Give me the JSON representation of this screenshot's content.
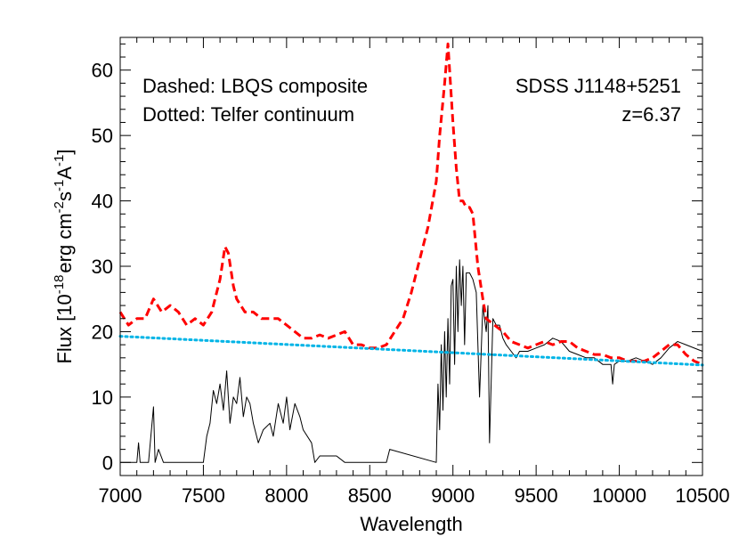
{
  "chart_data": {
    "type": "line",
    "xlabel": "Wavelength",
    "ylabel": {
      "prefix": "Flux [10",
      "exp1": "-18",
      "mid": "erg cm",
      "exp2": "-2",
      "s": "s",
      "exp3": "-1",
      "A": "A",
      "exp4": "-1",
      "suffix": "]"
    },
    "xlim": [
      7000,
      10500
    ],
    "ylim": [
      -2,
      65
    ],
    "xticks": [
      7000,
      7500,
      8000,
      8500,
      9000,
      9500,
      10000,
      10500
    ],
    "yticks": [
      0,
      10,
      20,
      30,
      40,
      50,
      60
    ],
    "annotations": {
      "dashed_label": "Dashed: LBQS composite",
      "dotted_label": "Dotted: Telfer continuum",
      "object": "SDSS J1148+5251",
      "redshift": "z=6.37"
    },
    "colors": {
      "observed": "#000000",
      "lbqs": "#ff0000",
      "telfer": "#00b4e6"
    },
    "series": [
      {
        "style": "solid",
        "x": [
          7000,
          7100,
          7110,
          7120,
          7150,
          7170,
          7200,
          7210,
          7230,
          7260,
          7300,
          7360,
          7400,
          7500,
          7520,
          7540,
          7560,
          7580,
          7600,
          7620,
          7640,
          7660,
          7680,
          7700,
          7720,
          7740,
          7760,
          7780,
          7800,
          7830,
          7860,
          7900,
          7920,
          7950,
          7980,
          8000,
          8020,
          8050,
          8080,
          8100,
          8150,
          8170,
          8200,
          8300,
          8350,
          8380,
          8600,
          8620,
          8900,
          8910,
          8920,
          8930,
          8940,
          8950,
          8960,
          8970,
          8980,
          8990,
          9000,
          9010,
          9020,
          9030,
          9040,
          9050,
          9060,
          9070,
          9080,
          9100,
          9120,
          9140,
          9160,
          9180,
          9200,
          9210,
          9220,
          9240,
          9260,
          9280,
          9300,
          9320,
          9350,
          9380,
          9400,
          9450,
          9500,
          9550,
          9600,
          9650,
          9700,
          9750,
          9800,
          9850,
          9900,
          9950,
          9960,
          9970,
          10000,
          10050,
          10100,
          10200,
          10250,
          10300,
          10350,
          10400,
          10500
        ],
        "y": [
          0,
          0,
          3,
          0,
          0,
          0,
          8.5,
          0,
          2,
          0,
          0,
          0,
          0,
          0,
          4,
          6,
          11,
          9,
          12,
          8,
          14,
          6,
          10,
          9,
          13,
          7,
          10,
          9,
          6,
          3,
          5,
          6,
          4,
          9,
          6,
          10,
          5,
          9,
          7,
          5,
          3,
          0,
          1,
          1,
          0,
          0,
          0,
          2,
          0,
          12,
          5,
          18,
          8,
          20,
          10,
          22,
          12,
          27,
          28,
          15,
          30,
          20,
          31,
          24,
          30,
          18,
          29,
          29,
          28,
          26,
          10,
          24,
          20,
          24,
          3,
          22,
          21,
          21,
          19,
          18,
          17,
          16,
          17,
          17,
          17.5,
          18,
          19,
          18.5,
          17,
          16.5,
          16,
          16,
          15,
          15,
          12,
          15,
          15.5,
          15.5,
          16,
          15,
          16,
          17.5,
          18.5,
          18,
          17
        ]
      },
      {
        "style": "dashed",
        "x": [
          7000,
          7050,
          7100,
          7150,
          7200,
          7250,
          7300,
          7350,
          7400,
          7450,
          7500,
          7550,
          7600,
          7630,
          7650,
          7680,
          7700,
          7750,
          7800,
          7850,
          7900,
          7950,
          8000,
          8050,
          8100,
          8150,
          8200,
          8250,
          8300,
          8350,
          8400,
          8450,
          8500,
          8550,
          8600,
          8650,
          8700,
          8750,
          8800,
          8850,
          8900,
          8920,
          8950,
          8970,
          9000,
          9020,
          9040,
          9060,
          9080,
          9100,
          9120,
          9150,
          9180,
          9200,
          9250,
          9300,
          9350,
          9400,
          9450,
          9500,
          9550,
          9600,
          9650,
          9700,
          9750,
          9800,
          9850,
          9900,
          9950,
          10000,
          10050,
          10100,
          10150,
          10200,
          10250,
          10300,
          10350,
          10400,
          10450,
          10500
        ],
        "y": [
          23,
          21,
          22,
          22,
          25,
          23,
          24,
          23,
          21,
          22,
          21,
          23,
          28,
          33,
          32,
          27,
          25,
          23,
          23,
          22,
          22,
          22,
          21,
          20,
          19,
          19,
          19.5,
          19,
          19.5,
          20,
          18,
          18,
          17.5,
          17.5,
          18,
          20,
          22,
          26,
          31,
          36,
          43,
          50,
          58,
          64,
          52,
          45,
          40,
          40,
          39,
          39,
          38,
          30,
          25,
          22,
          21,
          20,
          18.5,
          18,
          17.5,
          18,
          18.5,
          18,
          18.5,
          18.5,
          17.5,
          17,
          16.5,
          16.5,
          16,
          16,
          15.5,
          15.5,
          15.5,
          16,
          17,
          18,
          18,
          16.5,
          15.5,
          15
        ]
      },
      {
        "style": "dotted",
        "x": [
          7000,
          10500
        ],
        "y": [
          19.3,
          14.9
        ]
      }
    ]
  }
}
